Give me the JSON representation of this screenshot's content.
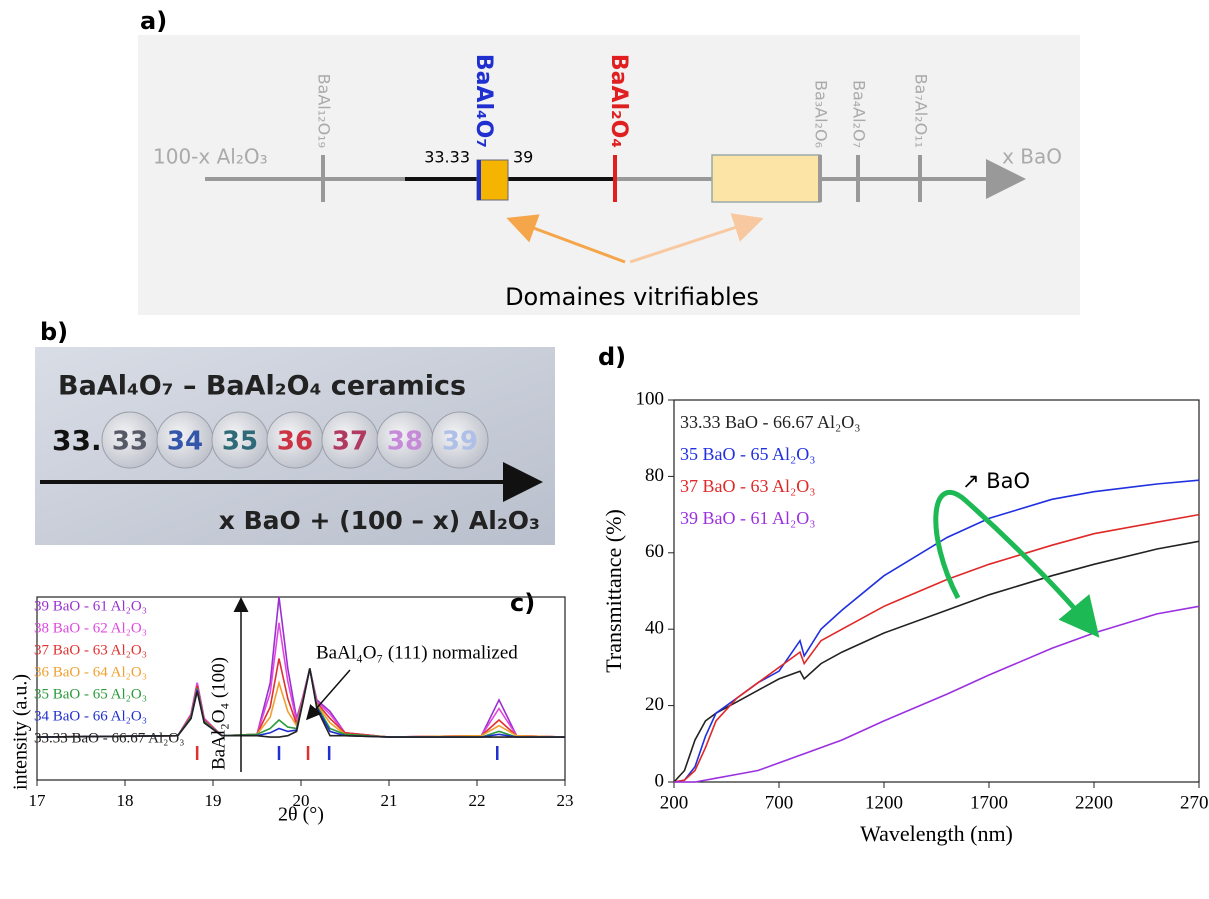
{
  "panels": [
    "a)",
    "b)",
    "c)",
    "d)"
  ],
  "diagram": {
    "left_label": "100-x Al₂O₃",
    "right_label": "x BaO",
    "phases": [
      "BaAl₁₂O₁₉",
      "BaAl₄O₇",
      "BaAl₂O₄",
      "Ba₃Al₂O₆",
      "Ba₄Al₂O₇",
      "Ba₇Al₂O₁₁"
    ],
    "bounds": [
      "33.33",
      "39"
    ],
    "caption": "Domaines vitrifiables"
  },
  "photo": {
    "title": "BaAl₄O₇ – BaAl₂O₄ ceramics",
    "prefix": "33.",
    "samples": [
      "33",
      "34",
      "35",
      "36",
      "37",
      "38",
      "39"
    ],
    "axis_label": "x BaO + (100 – x) Al₂O₃"
  },
  "chart_data": [
    {
      "type": "line",
      "xlabel": "2θ (°)",
      "ylabel": "intensity (a.u.)",
      "annotations": [
        "BaAl₂O₄ (100)",
        "BaAl₄O₇ (111) normalized"
      ],
      "x": [
        17,
        18.6,
        18.75,
        18.82,
        18.9,
        19.1,
        19.5,
        19.65,
        19.75,
        19.85,
        19.95,
        20.02,
        20.1,
        20.18,
        20.33,
        20.5,
        21,
        22.05,
        22.25,
        22.45,
        23
      ],
      "xlim": [
        17,
        23
      ],
      "xticks": [
        17,
        18,
        19,
        20,
        21,
        22,
        23
      ],
      "ylim": [
        -28,
        100
      ],
      "series": [
        {
          "name": "39 BaO - 61 Al₂O₃",
          "color": "#9b30d0",
          "values": [
            2,
            3,
            18,
            40,
            15,
            3,
            4,
            40,
            100,
            50,
            15,
            30,
            50,
            28,
            20,
            5,
            2,
            3,
            28,
            3,
            2
          ]
        },
        {
          "name": "38 BaO - 62 Al₂O₃",
          "color": "#e048e0",
          "values": [
            2,
            3,
            18,
            40,
            15,
            3,
            4,
            33,
            82,
            41,
            13,
            30,
            50,
            27,
            18,
            5,
            2,
            3,
            22,
            3,
            2
          ]
        },
        {
          "name": "37 BaO - 63 Al₂O₃",
          "color": "#e03030",
          "values": [
            2,
            3,
            17,
            38,
            14,
            3,
            4,
            23,
            57,
            29,
            11,
            29,
            50,
            26,
            15,
            5,
            2,
            3,
            14,
            3,
            2
          ]
        },
        {
          "name": "36 BaO - 64 Al₂O₃",
          "color": "#f0a030",
          "values": [
            2,
            3,
            16,
            36,
            13,
            3,
            4,
            16,
            40,
            20,
            10,
            28,
            50,
            25,
            12,
            4,
            2,
            3,
            10,
            3,
            2
          ]
        },
        {
          "name": "35 BaO - 65 Al₂O₃",
          "color": "#2a9a3a",
          "values": [
            2,
            3,
            16,
            36,
            13,
            3,
            4,
            8,
            14,
            9,
            8,
            27,
            50,
            24,
            8,
            4,
            2,
            2,
            6,
            2,
            2
          ]
        },
        {
          "name": "34 BaO - 66 Al₂O₃",
          "color": "#2030d0",
          "values": [
            2,
            3,
            15,
            35,
            12,
            3,
            3,
            5,
            8,
            6,
            7,
            27,
            50,
            23,
            6,
            3,
            2,
            2,
            4,
            2,
            2
          ]
        },
        {
          "name": "33.33 BaO - 66.67 Al₂O₃",
          "color": "#222222",
          "values": [
            2,
            3,
            15,
            34,
            12,
            3,
            3,
            2,
            2,
            3,
            6,
            26,
            50,
            22,
            3,
            3,
            2,
            2,
            2,
            2,
            2
          ]
        }
      ],
      "reference_lines": {
        "x": [
          18.82,
          19.75,
          20.08,
          20.32,
          22.23
        ],
        "colors": [
          "#e03030",
          "#2030d0",
          "#e03030",
          "#2030d0",
          "#2030d0"
        ]
      }
    },
    {
      "type": "line",
      "xlabel": "Wavelength (nm)",
      "ylabel": "Transmittance (%)",
      "annotations": [
        "↗ BaO"
      ],
      "x": [
        200,
        250,
        300,
        350,
        400,
        500,
        600,
        700,
        800,
        820,
        900,
        1000,
        1200,
        1500,
        1700,
        2000,
        2200,
        2500,
        2700
      ],
      "xlim": [
        200,
        2700
      ],
      "xticks": [
        200,
        700,
        1200,
        1700,
        2200,
        2700
      ],
      "ylim": [
        0,
        100
      ],
      "yticks": [
        0,
        20,
        40,
        60,
        80,
        100
      ],
      "series": [
        {
          "name": "33.33 BaO - 66.67 Al₂O₃",
          "color": "#222222",
          "values": [
            0,
            3,
            11,
            16,
            18,
            21,
            24,
            27,
            29,
            27,
            31,
            34,
            39,
            45,
            49,
            54,
            57,
            61,
            63
          ]
        },
        {
          "name": "35 BaO - 65 Al₂O₃",
          "color": "#2030e0",
          "values": [
            0,
            0.5,
            4,
            12,
            18,
            22,
            26,
            29,
            37,
            33,
            40,
            45,
            54,
            64,
            69,
            74,
            76,
            78,
            79
          ]
        },
        {
          "name": "37 BaO - 63 Al₂O₃",
          "color": "#e02828",
          "values": [
            0,
            0.5,
            3,
            9,
            16,
            22,
            26,
            30,
            34,
            31,
            37,
            40,
            46,
            53,
            57,
            62,
            65,
            68,
            70
          ]
        },
        {
          "name": "39 BaO - 61 Al₂O₃",
          "color": "#9b30e0",
          "values": [
            0,
            0,
            0,
            0.5,
            1,
            2,
            3,
            5,
            7,
            7.4,
            9,
            11,
            16,
            23,
            28,
            35,
            39,
            44,
            46
          ]
        }
      ]
    }
  ]
}
